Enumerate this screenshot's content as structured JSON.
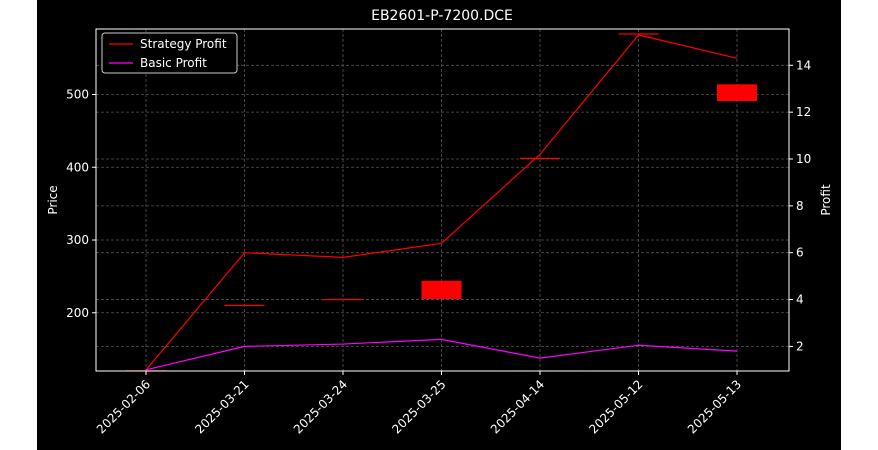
{
  "chart_data": {
    "type": "line",
    "title": "EB2601-P-7200.DCE",
    "xlabel": "",
    "ylabel_left": "Price",
    "ylabel_right": "Profit",
    "categories": [
      "2025-02-06",
      "2025-03-21",
      "2025-03-24",
      "2025-03-25",
      "2025-04-14",
      "2025-05-12",
      "2025-05-13"
    ],
    "y_left": {
      "ticks": [
        200,
        300,
        400,
        500
      ],
      "lim": [
        120,
        590
      ]
    },
    "y_right": {
      "ticks": [
        2,
        4,
        6,
        8,
        10,
        12,
        14
      ],
      "lim": [
        0.95,
        15.55
      ]
    },
    "series": [
      {
        "name": "Strategy Profit",
        "color": "#ff0000",
        "axis": "right",
        "values": [
          1.0,
          6.0,
          5.8,
          6.4,
          10.2,
          15.3,
          14.3
        ]
      },
      {
        "name": "Basic Profit",
        "color": "#ff00ff",
        "axis": "right",
        "values": [
          1.0,
          2.0,
          2.1,
          2.3,
          1.5,
          2.05,
          1.8
        ]
      }
    ],
    "candles": {
      "axis": "left",
      "color": "#ff0000",
      "items": [
        {
          "open": 121,
          "close": 121
        },
        {
          "open": 211,
          "close": 211
        },
        {
          "open": 219,
          "close": 219
        },
        {
          "open": 219,
          "close": 244
        },
        {
          "open": 413,
          "close": 413
        },
        {
          "open": 584,
          "close": 584
        },
        {
          "open": 491,
          "close": 514
        }
      ]
    },
    "grid": true,
    "legend": "top-left"
  }
}
